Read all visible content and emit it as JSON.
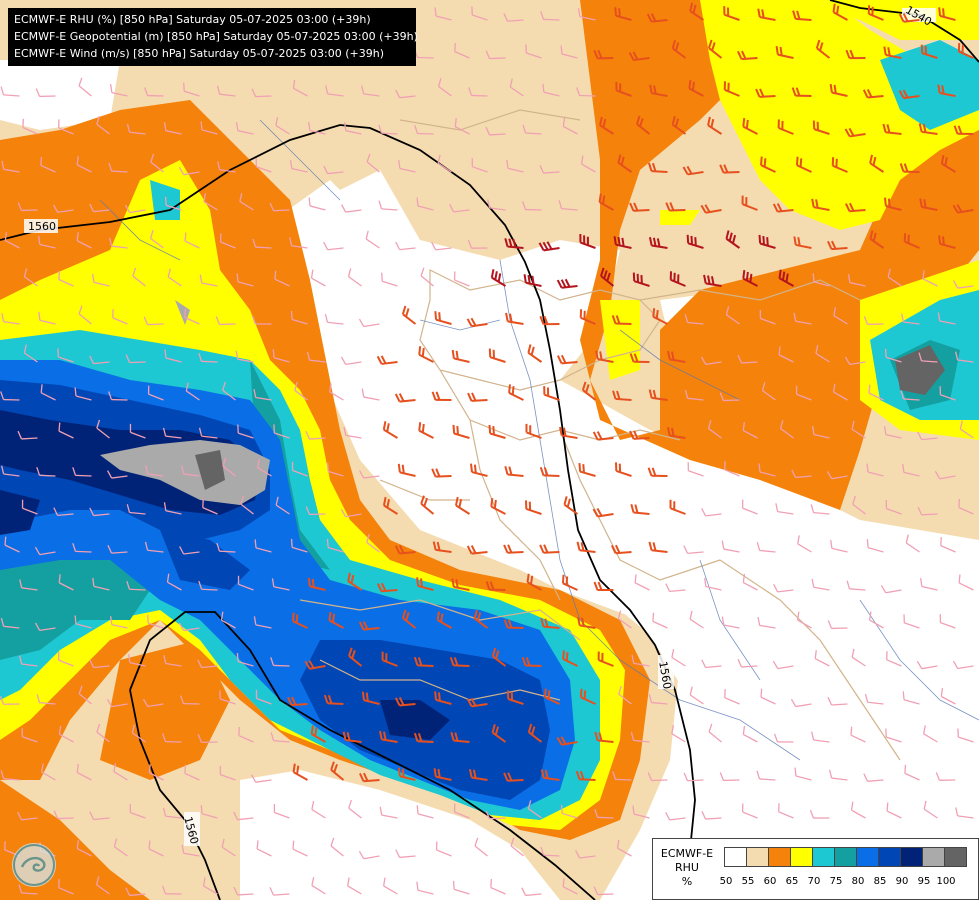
{
  "header": {
    "lines": [
      "ECMWF-E RHU (%) [850 hPa] Saturday 05-07-2025 03:00 (+39h)",
      "ECMWF-E Geopotential (m) [850 hPa] Saturday 05-07-2025 03:00 (+39h)",
      "ECMWF-E Wind (m/s) [850 hPa] Saturday 05-07-2025 03:00 (+39h)"
    ]
  },
  "legend": {
    "title": [
      "ECMWF-E",
      "RHU",
      "%"
    ],
    "ticks": [
      "50",
      "55",
      "60",
      "65",
      "70",
      "75",
      "80",
      "85",
      "90",
      "95",
      "100"
    ],
    "colors": [
      "#ffffff",
      "#f5dcb0",
      "#f5820a",
      "#ffff00",
      "#1ec8d2",
      "#14a0a0",
      "#0a6ee6",
      "#0046b4",
      "#002378",
      "#aaaaaa",
      "#646464"
    ]
  },
  "contours": {
    "label_a": "1560",
    "label_b": "1540",
    "label_c": "1560",
    "label_d": "1560",
    "line_color": "#000000"
  },
  "colors": {
    "wind_strong": "#b4141e",
    "wind_mid": "#e6501e",
    "wind_weak": "#f0a0b4",
    "border": "#d2b48c",
    "river": "#5a78b4"
  },
  "logo": {
    "icon": "ecmwf-logo-icon"
  }
}
